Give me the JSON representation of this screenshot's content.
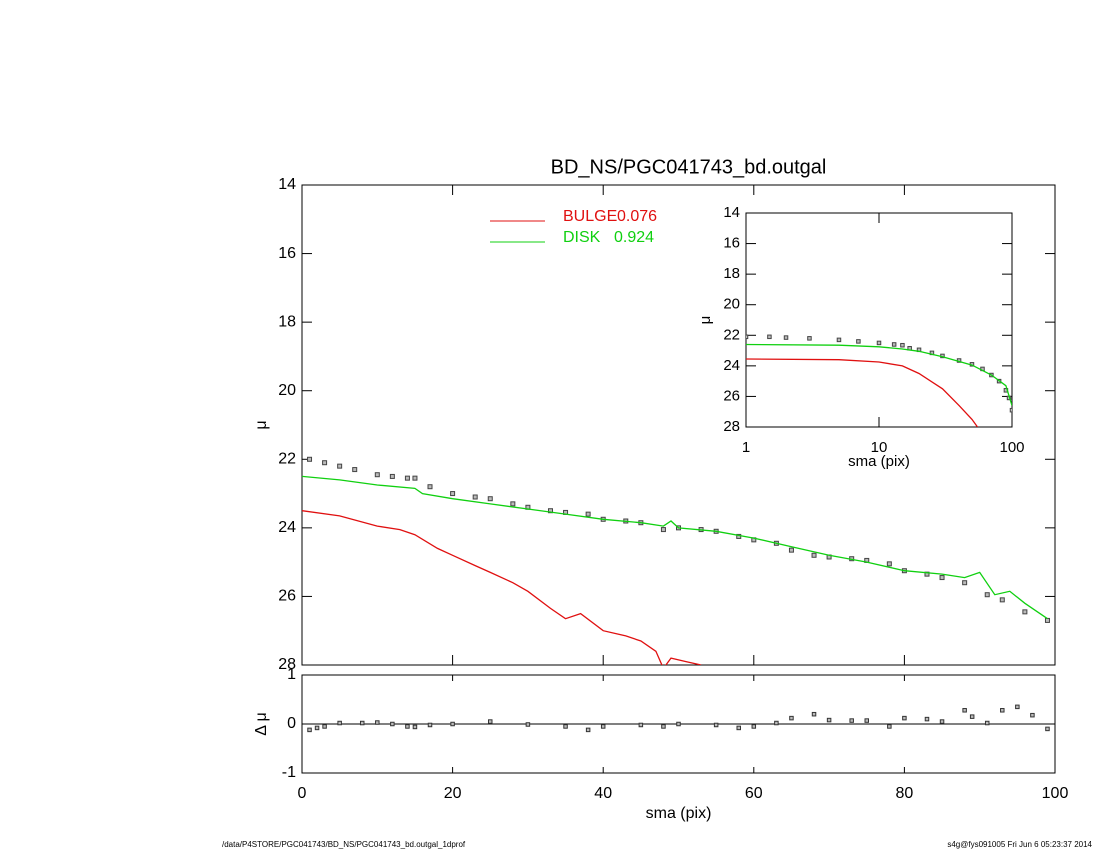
{
  "chart_data": [
    {
      "type": "line",
      "title": "BD_NS/PGC041743_bd.outgal",
      "ylabel": "μ",
      "xlim": [
        0,
        100
      ],
      "ylim": [
        28,
        14
      ],
      "xticks": [
        0,
        20,
        40,
        60,
        80,
        100
      ],
      "xtick_labels": false,
      "yticks": [
        14,
        16,
        18,
        20,
        22,
        24,
        26,
        28
      ],
      "legend": "top",
      "series": [
        {
          "style": "points",
          "color": "#444444",
          "x": [
            1,
            3,
            5,
            7,
            10,
            12,
            14,
            15,
            17,
            20,
            23,
            25,
            28,
            30,
            33,
            35,
            38,
            40,
            43,
            45,
            48,
            50,
            53,
            55,
            58,
            60,
            63,
            65,
            68,
            70,
            73,
            75,
            78,
            80,
            83,
            85,
            88,
            91,
            93,
            96,
            99
          ],
          "values": [
            22.0,
            22.1,
            22.2,
            22.3,
            22.45,
            22.5,
            22.55,
            22.55,
            22.8,
            23.0,
            23.1,
            23.15,
            23.3,
            23.4,
            23.5,
            23.55,
            23.6,
            23.75,
            23.8,
            23.85,
            24.05,
            24.0,
            24.05,
            24.1,
            24.25,
            24.35,
            24.45,
            24.65,
            24.8,
            24.85,
            24.9,
            24.95,
            25.05,
            25.25,
            25.35,
            25.45,
            25.6,
            25.95,
            26.1,
            26.45,
            26.7
          ]
        },
        {
          "style": "line",
          "name": "BULGE",
          "fraction": 0.076,
          "color": "#e01010",
          "x": [
            0,
            5,
            10,
            13,
            15,
            18,
            20,
            23,
            25,
            28,
            30,
            33,
            35,
            37,
            40,
            43,
            45,
            47,
            48,
            49,
            51,
            53
          ],
          "values": [
            23.5,
            23.65,
            23.95,
            24.05,
            24.2,
            24.6,
            24.8,
            25.1,
            25.3,
            25.6,
            25.85,
            26.35,
            26.65,
            26.5,
            27.0,
            27.15,
            27.3,
            27.6,
            28.1,
            27.8,
            27.9,
            28.0
          ]
        },
        {
          "style": "line",
          "name": "DISK",
          "fraction": 0.924,
          "color": "#10d010",
          "x": [
            0,
            5,
            10,
            15,
            16,
            20,
            25,
            30,
            35,
            40,
            45,
            48,
            49,
            50,
            55,
            60,
            65,
            70,
            75,
            80,
            85,
            88,
            90,
            92,
            94,
            96,
            99
          ],
          "values": [
            22.5,
            22.6,
            22.75,
            22.85,
            23.0,
            23.15,
            23.3,
            23.45,
            23.6,
            23.75,
            23.85,
            23.95,
            23.8,
            24.0,
            24.1,
            24.3,
            24.55,
            24.8,
            25.0,
            25.25,
            25.35,
            25.45,
            25.3,
            25.95,
            25.85,
            26.2,
            26.65
          ]
        }
      ]
    },
    {
      "type": "scatter",
      "xlabel": "sma (pix)",
      "ylabel": "Δ μ",
      "xlim": [
        0,
        100
      ],
      "ylim": [
        -1,
        1
      ],
      "xticks": [
        0,
        20,
        40,
        60,
        80,
        100
      ],
      "yticks": [
        -1,
        0,
        1
      ],
      "reference_line": 0,
      "series": [
        {
          "style": "points",
          "color": "#333333",
          "x": [
            1,
            2,
            3,
            5,
            8,
            10,
            12,
            14,
            15,
            17,
            20,
            25,
            30,
            35,
            38,
            40,
            45,
            48,
            50,
            55,
            58,
            60,
            63,
            65,
            68,
            70,
            73,
            75,
            78,
            80,
            83,
            85,
            88,
            89,
            91,
            93,
            95,
            97,
            99
          ],
          "values": [
            -0.12,
            -0.08,
            -0.05,
            0.02,
            0.02,
            0.03,
            0.0,
            -0.05,
            -0.06,
            -0.02,
            0.0,
            0.05,
            -0.01,
            -0.05,
            -0.12,
            -0.05,
            -0.02,
            -0.05,
            0.0,
            -0.02,
            -0.08,
            -0.05,
            0.02,
            0.12,
            0.2,
            0.08,
            0.07,
            0.07,
            -0.05,
            0.12,
            0.1,
            0.05,
            0.28,
            0.15,
            0.02,
            0.28,
            0.35,
            0.18,
            -0.1
          ]
        }
      ]
    },
    {
      "type": "line",
      "xlabel": "sma (pix)",
      "ylabel": "μ",
      "xlog": true,
      "xlim": [
        1,
        100
      ],
      "ylim": [
        28,
        14
      ],
      "xticks": [
        1,
        10,
        100
      ],
      "yticks": [
        14,
        16,
        18,
        20,
        22,
        24,
        26,
        28
      ],
      "series": [
        {
          "style": "points",
          "color": "#444444",
          "x": [
            1,
            1.5,
            2,
            3,
            5,
            7,
            10,
            13,
            15,
            17,
            20,
            25,
            30,
            40,
            50,
            60,
            70,
            80,
            90,
            95,
            100
          ],
          "values": [
            22.1,
            22.1,
            22.15,
            22.2,
            22.3,
            22.4,
            22.5,
            22.6,
            22.65,
            22.85,
            22.95,
            23.15,
            23.35,
            23.65,
            23.9,
            24.2,
            24.6,
            25.0,
            25.6,
            26.1,
            26.9
          ]
        },
        {
          "style": "line",
          "color": "#e01010",
          "x": [
            1,
            5,
            10,
            15,
            20,
            30,
            40,
            50,
            55
          ],
          "values": [
            23.55,
            23.6,
            23.75,
            24.0,
            24.5,
            25.5,
            26.6,
            27.5,
            28.0
          ]
        },
        {
          "style": "line",
          "color": "#10d010",
          "x": [
            1,
            5,
            10,
            15,
            20,
            30,
            50,
            70,
            90,
            100
          ],
          "values": [
            22.6,
            22.65,
            22.75,
            22.9,
            23.05,
            23.4,
            23.95,
            24.6,
            25.3,
            26.6
          ]
        }
      ]
    }
  ],
  "footer": {
    "path": "/data/P4STORE/PGC041743/BD_NS/PGC041743_bd.outgal_1dprof",
    "stamp": "s4g@fys091005  Fri Jun  6 05:23:37 2014"
  }
}
